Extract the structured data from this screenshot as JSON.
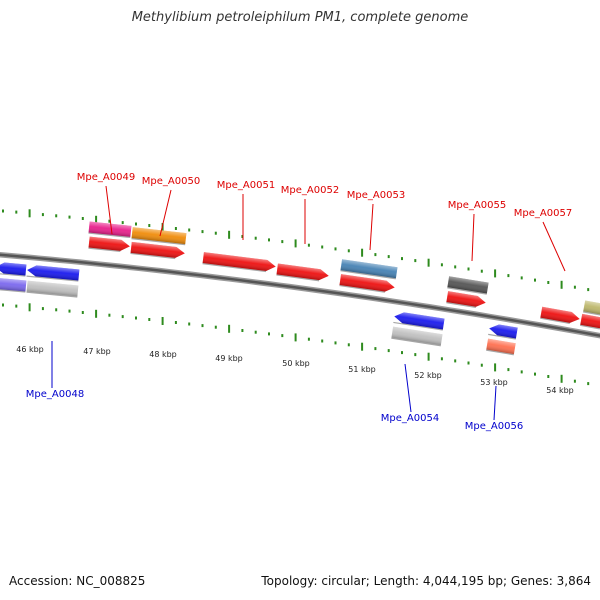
{
  "title": "Methylibium petroleiphilum PM1, complete genome",
  "accession": "Accession: NC_008825",
  "summary": "Topology: circular; Length: 4,044,195 bp; Genes: 3,864",
  "scale_labels": [
    "46 kbp",
    "47 kbp",
    "48 kbp",
    "49 kbp",
    "50 kbp",
    "51 kbp",
    "52 kbp",
    "53 kbp",
    "54 kbp"
  ],
  "genes": [
    {
      "label": "Mpe_A0048",
      "strand": "minus",
      "color": "#0000cc"
    },
    {
      "label": "Mpe_A0049",
      "strand": "plus",
      "color": "#dd0000"
    },
    {
      "label": "Mpe_A0050",
      "strand": "plus",
      "color": "#dd0000"
    },
    {
      "label": "Mpe_A0051",
      "strand": "plus",
      "color": "#dd0000"
    },
    {
      "label": "Mpe_A0052",
      "strand": "plus",
      "color": "#dd0000"
    },
    {
      "label": "Mpe_A0053",
      "strand": "plus",
      "color": "#dd0000"
    },
    {
      "label": "Mpe_A0054",
      "strand": "minus",
      "color": "#0000cc"
    },
    {
      "label": "Mpe_A0055",
      "strand": "plus",
      "color": "#dd0000"
    },
    {
      "label": "Mpe_A0056",
      "strand": "minus",
      "color": "#0000cc"
    },
    {
      "label": "Mpe_A0057",
      "strand": "plus",
      "color": "#dd0000"
    }
  ],
  "colors": {
    "forward_gene": "#ee1111",
    "reverse_gene": "#1a1aee",
    "tick": "#2e8b1e",
    "backbone": "#808080",
    "category_magenta": "#e8208c",
    "category_orange": "#f08c0a",
    "category_steelblue": "#4682b4",
    "category_darkgray": "#555555",
    "category_khaki": "#bdb76b",
    "category_purple": "#7b68ee",
    "category_lightgray": "#c0c0c0",
    "category_salmon": "#ff7050"
  }
}
